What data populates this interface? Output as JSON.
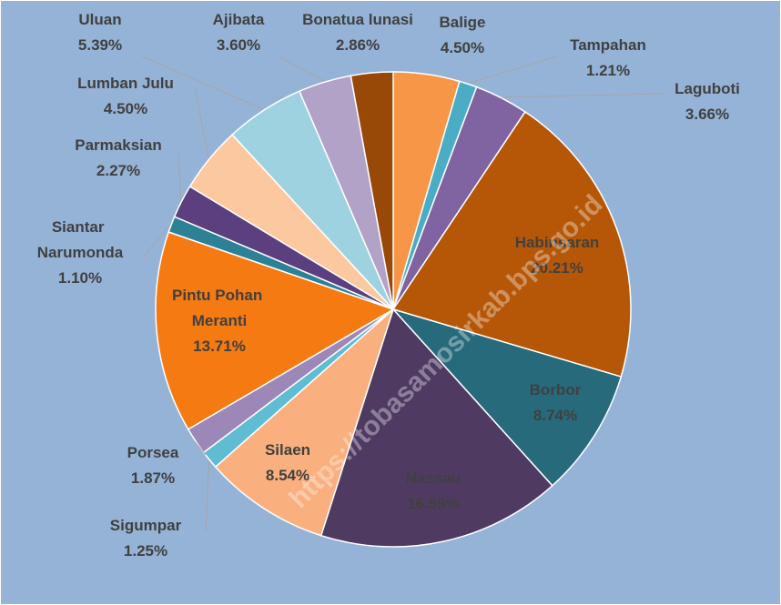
{
  "chart_data": {
    "type": "pie",
    "categories": [
      "Balige",
      "Tampahan",
      "Laguboti",
      "Habinsaran",
      "Borbor",
      "Nassau",
      "Silaen",
      "Sigumpar",
      "Porsea",
      "Pintu Pohan Meranti",
      "Siantar Narumonda",
      "Parmaksian",
      "Lumban Julu",
      "Uluan",
      "Ajibata",
      "Bonatua lunasi"
    ],
    "values": [
      4.5,
      1.21,
      3.66,
      20.21,
      8.74,
      16.59,
      8.54,
      1.25,
      1.87,
      13.71,
      1.1,
      2.27,
      4.5,
      5.39,
      3.6,
      2.86
    ],
    "value_labels": [
      "4.50%",
      "1.21%",
      "3.66%",
      "20.21%",
      "8.74%",
      "16.59%",
      "8.54%",
      "1.25%",
      "1.87%",
      "13.71%",
      "1.10%",
      "2.27%",
      "4.50%",
      "5.39%",
      "3.60%",
      "2.86%"
    ],
    "colors": [
      "#f79646",
      "#4bacc6",
      "#8064a2",
      "#b65708",
      "#276a7c",
      "#4f3b62",
      "#fab07e",
      "#5fbcd3",
      "#9d87b8",
      "#f57a12",
      "#2c8196",
      "#5b3f7e",
      "#fbc89f",
      "#9fd2e0",
      "#b3a2c7",
      "#984807"
    ],
    "watermark": "https://tobasamosirkab.bps.go.id"
  }
}
